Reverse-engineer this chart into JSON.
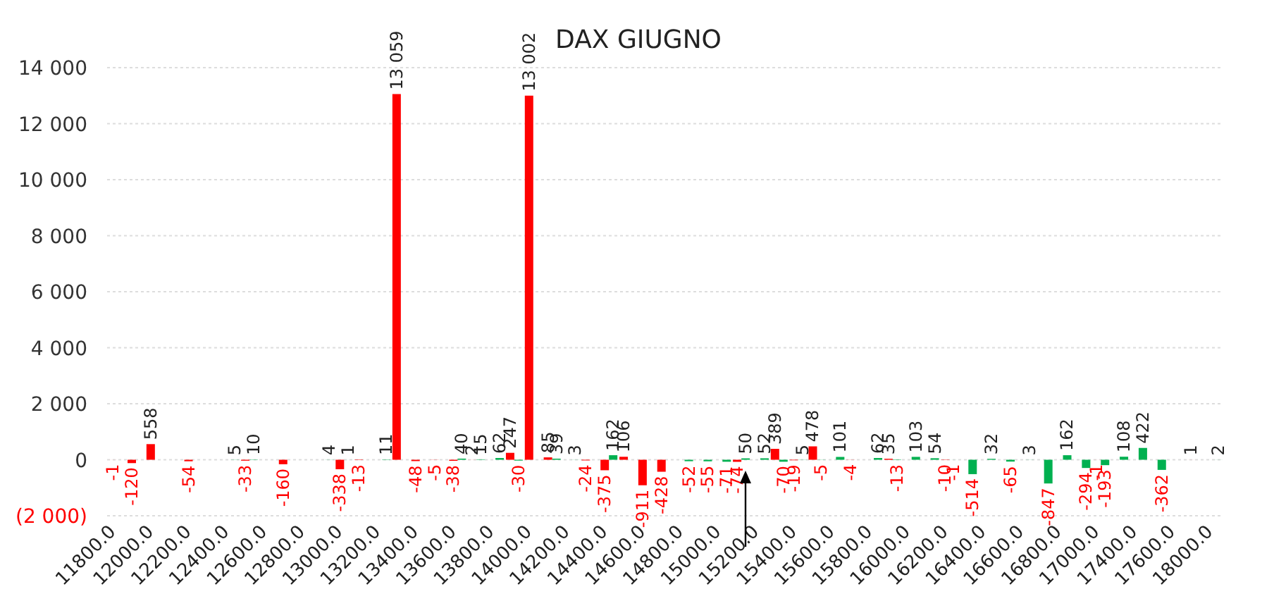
{
  "chart_data": {
    "type": "bar",
    "title": "DAX GIUGNO",
    "categories": [
      "11800.0",
      null,
      "12000.0",
      null,
      "12200.0",
      null,
      "12400.0",
      null,
      "12600.0",
      null,
      "12800.0",
      null,
      "13000.0",
      null,
      "13200.0",
      null,
      "13400.0",
      null,
      "13600.0",
      null,
      "13800.0",
      null,
      "14000.0",
      null,
      "14200.0",
      null,
      "14400.0",
      null,
      "14600.0",
      null,
      "14800.0",
      null,
      "15000.0",
      null,
      "15200.0",
      null,
      "15400.0",
      null,
      "15600.0",
      null,
      "15800.0",
      null,
      "16000.0",
      null,
      "16200.0",
      null,
      "16400.0",
      null,
      "16600.0",
      null,
      "16800.0",
      null,
      "17000.0",
      null,
      "17400.0",
      null,
      "17600.0",
      null,
      "18000.0"
    ],
    "series": [
      {
        "color": "#ff0000",
        "values": [
          -1,
          -120,
          558,
          null,
          -54,
          null,
          null,
          -33,
          null,
          -160,
          null,
          null,
          -338,
          -13,
          null,
          13059,
          -48,
          -5,
          -38,
          2,
          null,
          247,
          13002,
          85,
          null,
          -24,
          -375,
          106,
          -911,
          -428,
          null,
          null,
          null,
          -74,
          null,
          389,
          -19,
          478,
          null,
          -4,
          null,
          35,
          null,
          null,
          -10,
          null,
          null,
          null,
          null,
          null,
          null,
          null,
          -1,
          null,
          null,
          null,
          null,
          1,
          null
        ],
        "value_labels": [
          "-1",
          "-120",
          "558",
          null,
          "-54",
          null,
          null,
          "-33",
          null,
          "-160",
          null,
          null,
          "-338",
          "-13",
          null,
          "13 059",
          "-48",
          "-5",
          "-38",
          "2",
          null,
          "247",
          "13 002",
          "85",
          null,
          "-24",
          "-375",
          "106",
          "-911",
          "-428",
          null,
          null,
          null,
          "-74",
          null,
          "389",
          "-19",
          "478",
          null,
          "-4",
          null,
          "35",
          null,
          null,
          "-10",
          null,
          null,
          null,
          null,
          null,
          null,
          null,
          "-1",
          null,
          null,
          null,
          null,
          "1",
          null
        ]
      },
      {
        "color": "#00b050",
        "values": [
          null,
          null,
          null,
          null,
          null,
          null,
          5,
          10,
          null,
          null,
          null,
          4,
          1,
          null,
          11,
          null,
          null,
          null,
          40,
          15,
          62,
          -30,
          null,
          39,
          3,
          null,
          162,
          null,
          null,
          null,
          -52,
          -55,
          -71,
          50,
          52,
          -70,
          5,
          -5,
          101,
          null,
          62,
          -13,
          103,
          54,
          -1,
          -514,
          32,
          -65,
          3,
          -847,
          162,
          -294,
          -193,
          108,
          422,
          -362,
          null,
          null,
          2
        ],
        "value_labels": [
          null,
          null,
          null,
          null,
          null,
          null,
          "5",
          "10",
          null,
          null,
          null,
          "4",
          "1",
          null,
          "11",
          null,
          null,
          null,
          "40",
          "15",
          "62",
          "-30",
          null,
          "39",
          "3",
          null,
          "162",
          null,
          null,
          null,
          "-52",
          "-55",
          "-71",
          "50",
          "52",
          "-70",
          "5",
          "-5",
          "101",
          null,
          "62",
          "-13",
          "103",
          "54",
          "-1",
          "-514",
          "32",
          "-65",
          "3",
          "-847",
          "162",
          "-294",
          "-193",
          "108",
          "422",
          "-362",
          null,
          null,
          "2"
        ]
      }
    ],
    "ylim": [
      -2000,
      14000
    ],
    "yticks": [
      {
        "value": -2000,
        "label": "(2 000)"
      },
      0,
      {
        "value": 2000,
        "label": "2 000"
      },
      {
        "value": 4000,
        "label": "4 000"
      },
      {
        "value": 6000,
        "label": "6 000"
      },
      {
        "value": 8000,
        "label": "8 000"
      },
      {
        "value": 10000,
        "label": "10 000"
      },
      {
        "value": 12000,
        "label": "12 000"
      },
      {
        "value": 14000,
        "label": "14 000"
      }
    ],
    "grid": "y",
    "legend": false
  }
}
